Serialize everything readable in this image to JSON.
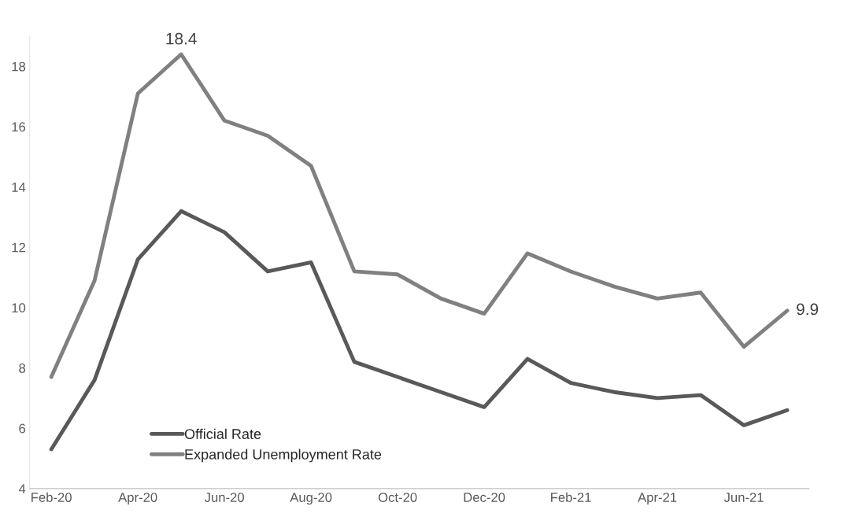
{
  "chart_data": {
    "type": "line",
    "categories": [
      "Feb-20",
      null,
      "Apr-20",
      null,
      "Jun-20",
      null,
      "Aug-20",
      null,
      "Oct-20",
      null,
      "Dec-20",
      null,
      "Feb-21",
      null,
      "Apr-21",
      null,
      "Jun-21",
      null
    ],
    "series": [
      {
        "name": "Official Rate",
        "color": "#595959",
        "values": [
          5.3,
          7.6,
          11.6,
          13.2,
          12.5,
          11.2,
          11.5,
          8.2,
          7.7,
          7.2,
          6.7,
          8.3,
          7.5,
          7.2,
          7.0,
          7.1,
          6.1,
          6.6
        ]
      },
      {
        "name": "Expanded Unemployment Rate",
        "color": "#808080",
        "values": [
          7.7,
          10.9,
          17.1,
          18.4,
          16.2,
          15.7,
          14.7,
          11.2,
          11.1,
          10.3,
          9.8,
          11.8,
          11.2,
          10.7,
          10.3,
          10.5,
          8.7,
          9.9
        ],
        "value_labels": [
          null,
          null,
          null,
          "18.4",
          null,
          null,
          null,
          null,
          null,
          null,
          null,
          null,
          null,
          null,
          null,
          null,
          null,
          "9.9"
        ]
      }
    ],
    "ylim": [
      4,
      19
    ],
    "yticks": [
      4,
      6,
      8,
      10,
      12,
      14,
      16,
      18
    ],
    "grid": false,
    "legend": "bottom left",
    "line_style": "solid",
    "marker": "none"
  }
}
